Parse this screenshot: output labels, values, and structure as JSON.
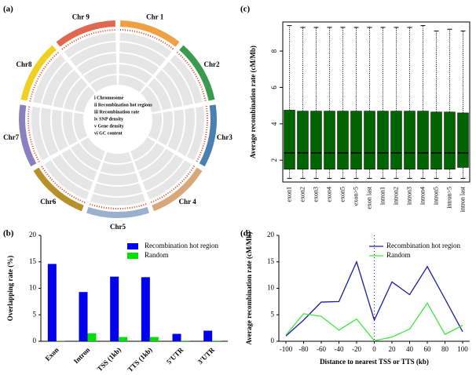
{
  "chart_data": [
    {
      "type": "circos",
      "label": "(a)",
      "chromosomes": [
        {
          "name": "Chr 1",
          "color": "#f0a040"
        },
        {
          "name": "Chr2",
          "color": "#3a9a50"
        },
        {
          "name": "Chr3",
          "color": "#4a7fb0"
        },
        {
          "name": "Chr 4",
          "color": "#d8a878"
        },
        {
          "name": "Chr5",
          "color": "#9ab0cc"
        },
        {
          "name": "Chr6",
          "color": "#b8902a"
        },
        {
          "name": "Chr7",
          "color": "#8a80c0"
        },
        {
          "name": "Chr8",
          "color": "#f0d020"
        },
        {
          "name": "Chr 9",
          "color": "#e06850"
        }
      ],
      "track_labels": [
        "i Chromosome",
        "ii Recombination hot regions",
        "iii Recombination rate",
        "iv SNP density",
        "v Gene density",
        "vi GC content"
      ]
    },
    {
      "type": "bar",
      "label": "(b)",
      "ylabel": "Overlapping rate (%)",
      "categories": [
        "Exon",
        "Intron",
        "TSS (1kb)",
        "TTS (1kb)",
        "5'UTR",
        "3'UTR"
      ],
      "series": [
        {
          "name": "Recombination hot region",
          "color": "#0000ee",
          "values": [
            14.6,
            9.3,
            12.2,
            12.1,
            1.4,
            2.0
          ]
        },
        {
          "name": "Random",
          "color": "#00e000",
          "values": [
            0.05,
            1.5,
            0.8,
            0.8,
            0.1,
            0.1
          ]
        }
      ],
      "ylim": [
        0,
        20
      ],
      "yticks": [
        0,
        5,
        10,
        15,
        20
      ],
      "legend": "upper right"
    },
    {
      "type": "box",
      "label": "(c)",
      "ylabel": "Average recombination rate (cM/Mb)",
      "color": "#006400",
      "categories": [
        "exon1",
        "exon2",
        "exon3",
        "exon4",
        "exon5",
        "exon>5",
        "exon last",
        "intron1",
        "intron2",
        "intron3",
        "intron4",
        "intron5",
        "intron>5",
        "intron last"
      ],
      "boxes": [
        {
          "low": 1.0,
          "q1": 1.5,
          "median": 2.4,
          "q3": 4.75,
          "high": 9.4
        },
        {
          "low": 1.0,
          "q1": 1.5,
          "median": 2.4,
          "q3": 4.7,
          "high": 9.3
        },
        {
          "low": 1.0,
          "q1": 1.5,
          "median": 2.4,
          "q3": 4.7,
          "high": 9.3
        },
        {
          "low": 1.0,
          "q1": 1.5,
          "median": 2.4,
          "q3": 4.7,
          "high": 9.3
        },
        {
          "low": 1.0,
          "q1": 1.5,
          "median": 2.4,
          "q3": 4.7,
          "high": 9.3
        },
        {
          "low": 1.0,
          "q1": 1.5,
          "median": 2.4,
          "q3": 4.7,
          "high": 9.3
        },
        {
          "low": 1.0,
          "q1": 1.5,
          "median": 2.4,
          "q3": 4.7,
          "high": 9.3
        },
        {
          "low": 1.0,
          "q1": 1.5,
          "median": 2.4,
          "q3": 4.7,
          "high": 9.3
        },
        {
          "low": 1.0,
          "q1": 1.5,
          "median": 2.4,
          "q3": 4.7,
          "high": 9.3
        },
        {
          "low": 1.0,
          "q1": 1.5,
          "median": 2.4,
          "q3": 4.7,
          "high": 9.3
        },
        {
          "low": 1.0,
          "q1": 1.5,
          "median": 2.4,
          "q3": 4.7,
          "high": 9.4
        },
        {
          "low": 1.0,
          "q1": 1.5,
          "median": 2.4,
          "q3": 4.65,
          "high": 9.1
        },
        {
          "low": 1.0,
          "q1": 1.5,
          "median": 2.4,
          "q3": 4.65,
          "high": 9.2
        },
        {
          "low": 1.0,
          "q1": 1.6,
          "median": 2.4,
          "q3": 4.6,
          "high": 9.1
        }
      ],
      "ylim": [
        0.8,
        9.6
      ],
      "yticks": [
        2,
        4,
        6,
        8
      ]
    },
    {
      "type": "line",
      "label": "(d)",
      "xlabel": "Distance to nearest TSS or TTS (kb)",
      "ylabel": "Average recombination rate (cM/Mb)",
      "x": [
        -100,
        -80,
        -60,
        -40,
        -20,
        0,
        20,
        40,
        60,
        80,
        100
      ],
      "series": [
        {
          "name": "Recombination hot region",
          "color": "#1a1aa0",
          "values": [
            1,
            4,
            7.4,
            7.5,
            15,
            4,
            11.2,
            8.8,
            14.1,
            8,
            1.8
          ]
        },
        {
          "name": "Random",
          "color": "#40e840",
          "values": [
            1.2,
            5.2,
            4.7,
            2.1,
            4.2,
            0.1,
            0.8,
            2.3,
            7.2,
            1.3,
            3
          ]
        }
      ],
      "xlim": [
        -108,
        108
      ],
      "ylim": [
        0,
        20
      ],
      "xticks": [
        -100,
        -80,
        -60,
        -40,
        -20,
        0,
        20,
        40,
        60,
        80,
        100
      ],
      "yticks": [
        0,
        5,
        10,
        15,
        20
      ],
      "legend": "upper right"
    }
  ]
}
